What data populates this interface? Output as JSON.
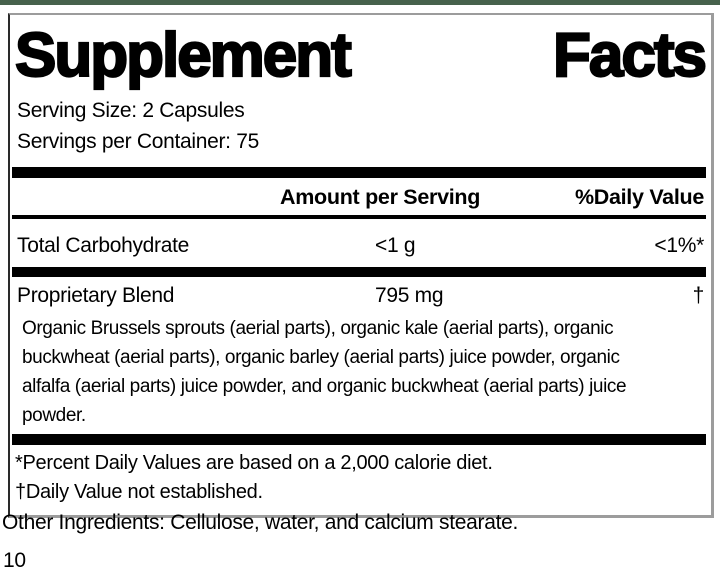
{
  "top_strip_color": "#47624c",
  "label": {
    "title_left": "Supplement",
    "title_right": "Facts",
    "serving_size": "Serving Size: 2 Capsules",
    "servings_per_container": "Servings per Container: 75",
    "columns": {
      "amount_header": "Amount per Serving",
      "daily_value_header": "%Daily Value"
    },
    "rows": [
      {
        "name": "Total Carbohydrate",
        "amount": "<1 g",
        "daily_value": "<1%*"
      },
      {
        "name": "Proprietary Blend",
        "amount": "795 mg",
        "daily_value": "†"
      }
    ],
    "blend_description_lines": [
      "Organic Brussels sprouts (aerial parts), organic kale (aerial parts), organic",
      "buckwheat (aerial parts), organic barley (aerial parts) juice powder, organic",
      "alfalfa (aerial parts) juice powder, and organic buckwheat (aerial parts) juice",
      "powder."
    ],
    "footnotes": [
      "*Percent Daily Values are based on a 2,000 calorie diet.",
      "†Daily Value not established."
    ]
  },
  "other_ingredients": "Other Ingredients: Cellulose, water, and calcium stearate.",
  "page_number": "10"
}
